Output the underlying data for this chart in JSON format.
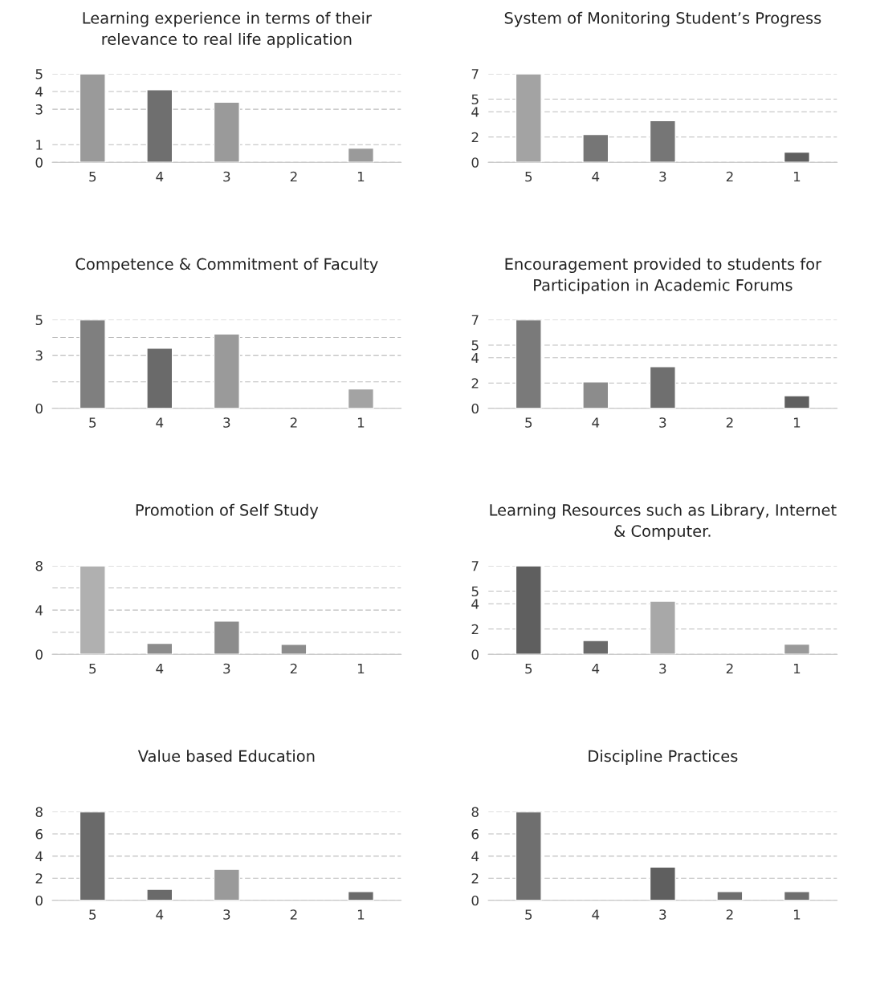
{
  "chart_data": [
    {
      "type": "bar",
      "title": "Learning experience in terms of their\nrelevance to real life application",
      "categories": [
        "5",
        "4",
        "3",
        "2",
        "1"
      ],
      "values": [
        5,
        4.1,
        3.4,
        null,
        0.8
      ],
      "colors": [
        "#9a9a9a",
        "#6f6f6f",
        "#9a9a9a",
        null,
        "#9a9a9a"
      ],
      "ylim": [
        0,
        5
      ],
      "yticks": [
        0,
        1,
        3,
        4,
        5
      ],
      "grid": "y"
    },
    {
      "type": "bar",
      "title": "System of Monitoring Student’s Progress",
      "categories": [
        "5",
        "4",
        "3",
        "2",
        "1"
      ],
      "values": [
        7,
        2.2,
        3.3,
        null,
        0.8
      ],
      "colors": [
        "#a3a3a3",
        "#767676",
        "#767676",
        null,
        "#5f5f5f"
      ],
      "ylim": [
        0,
        7
      ],
      "yticks": [
        0,
        2,
        4,
        5,
        7
      ],
      "grid": "y"
    },
    {
      "type": "bar",
      "title": "Competence & Commitment of Faculty",
      "categories": [
        "5",
        "4",
        "3",
        "2",
        "1"
      ],
      "values": [
        5,
        3.4,
        4.2,
        null,
        1.1
      ],
      "colors": [
        "#7f7f7f",
        "#6a6a6a",
        "#9a9a9a",
        null,
        "#a3a3a3"
      ],
      "ylim": [
        0,
        5
      ],
      "yticks": [
        0,
        {
          "value": 1.5,
          "label": null
        },
        3,
        {
          "value": 4,
          "label": null
        },
        5
      ],
      "grid": "y"
    },
    {
      "type": "bar",
      "title": "Encouragement provided to students for\nParticipation in Academic Forums",
      "categories": [
        "5",
        "4",
        "3",
        "2",
        "1"
      ],
      "values": [
        7,
        2.1,
        3.3,
        null,
        1.0
      ],
      "colors": [
        "#7a7a7a",
        "#8c8c8c",
        "#6f6f6f",
        null,
        "#5f5f5f"
      ],
      "ylim": [
        0,
        7
      ],
      "yticks": [
        0,
        2,
        4,
        5,
        7
      ],
      "grid": "y"
    },
    {
      "type": "bar",
      "title": "Promotion of Self Study",
      "categories": [
        "5",
        "4",
        "3",
        "2",
        "1"
      ],
      "values": [
        8,
        1.0,
        3.0,
        0.9,
        null
      ],
      "colors": [
        "#b0b0b0",
        "#8c8c8c",
        "#8c8c8c",
        "#8c8c8c",
        null
      ],
      "ylim": [
        0,
        8
      ],
      "yticks": [
        0,
        {
          "value": 2,
          "label": null
        },
        4,
        {
          "value": 6,
          "label": null
        },
        8
      ],
      "grid": "y"
    },
    {
      "type": "bar",
      "title": "Learning Resources such as Library, Internet\n& Computer.",
      "categories": [
        "5",
        "4",
        "3",
        "2",
        "1"
      ],
      "values": [
        7,
        1.1,
        4.2,
        null,
        0.8
      ],
      "colors": [
        "#5f5f5f",
        "#6a6a6a",
        "#a8a8a8",
        null,
        "#9a9a9a"
      ],
      "ylim": [
        0,
        7
      ],
      "yticks": [
        0,
        2,
        4,
        5,
        7
      ],
      "grid": "y"
    },
    {
      "type": "bar",
      "title": "Value based Education",
      "categories": [
        "5",
        "4",
        "3",
        "2",
        "1"
      ],
      "values": [
        8,
        1.0,
        2.8,
        null,
        0.8
      ],
      "colors": [
        "#6a6a6a",
        "#6a6a6a",
        "#9a9a9a",
        null,
        "#6a6a6a"
      ],
      "ylim": [
        0,
        8
      ],
      "yticks": [
        0,
        2,
        4,
        6,
        8
      ],
      "grid": "y"
    },
    {
      "type": "bar",
      "title": "Discipline Practices",
      "categories": [
        "5",
        "4",
        "3",
        "2",
        "1"
      ],
      "values": [
        8,
        null,
        3.0,
        0.8,
        0.8
      ],
      "colors": [
        "#6f6f6f",
        null,
        "#5f5f5f",
        "#6f6f6f",
        "#6f6f6f"
      ],
      "ylim": [
        0,
        8
      ],
      "yticks": [
        0,
        2,
        4,
        6,
        8
      ],
      "grid": "y"
    }
  ]
}
